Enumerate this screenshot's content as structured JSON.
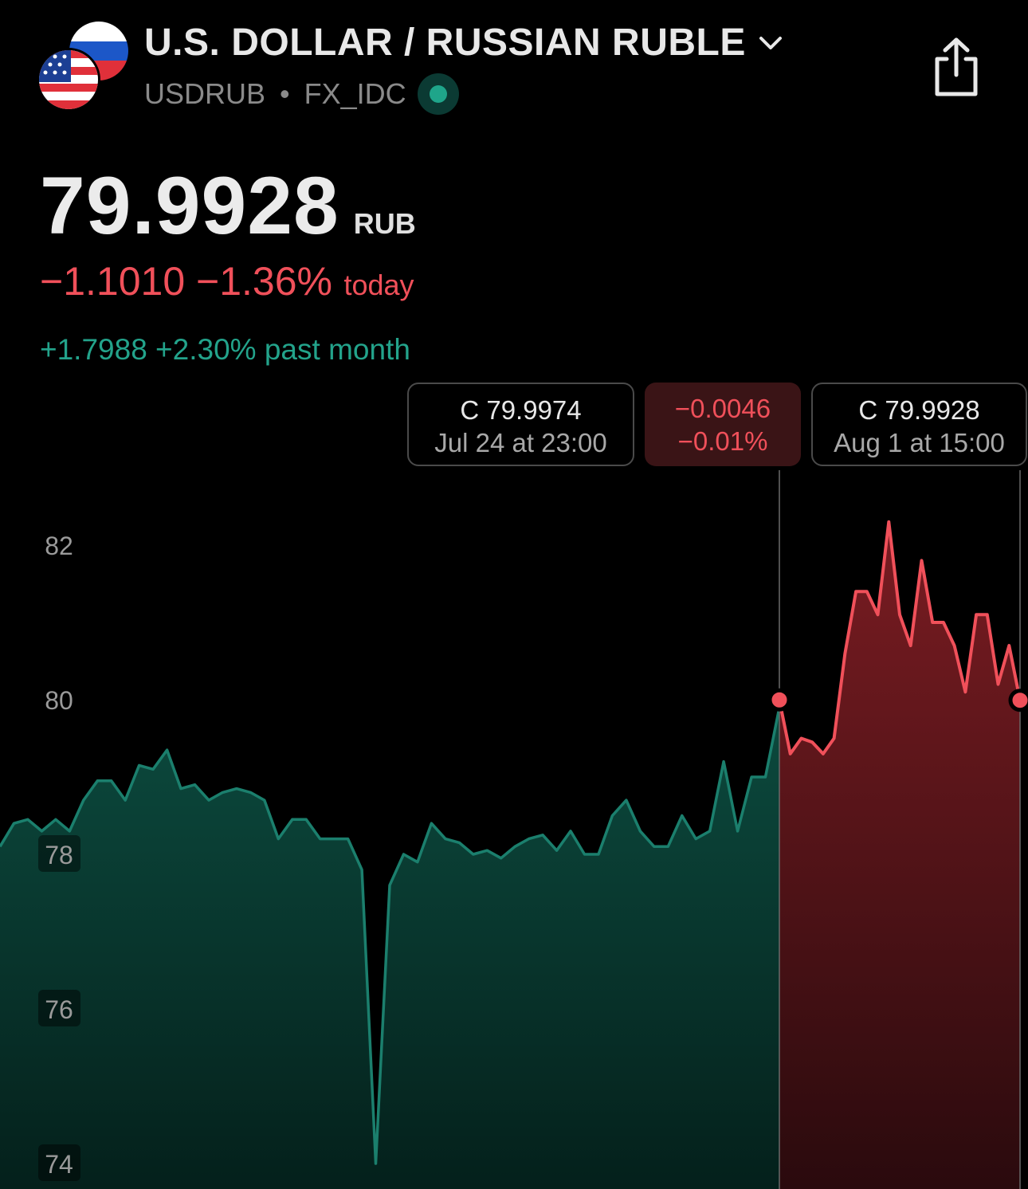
{
  "header": {
    "title": "U.S. DOLLAR / RUSSIAN RUBLE",
    "symbol": "USDRUB",
    "exchange": "FX_IDC",
    "icons": [
      "us-flag-icon",
      "ru-flag-icon",
      "chevron-down-icon",
      "live-status-icon",
      "share-icon"
    ]
  },
  "quote": {
    "price": "79.9928",
    "currency": "RUB",
    "change_today": "−1.1010 −1.36%",
    "change_today_label": "today",
    "change_month": "+1.7988 +2.30% past month"
  },
  "tooltips": {
    "left": {
      "close": "C 79.9974",
      "time": "Jul 24 at 23:00"
    },
    "diff": {
      "value": "−0.0046",
      "percent": "−0.01%"
    },
    "right": {
      "close": "C 79.9928",
      "time": "Aug 1 at 15:00"
    }
  },
  "colors": {
    "up": "#23a38b",
    "down": "#f0505a",
    "background": "#000000"
  },
  "chart_data": {
    "type": "area",
    "y_ticks": [
      "82",
      "80",
      "78",
      "76",
      "74"
    ],
    "ylim": [
      73.7,
      82.0
    ],
    "grid": false,
    "selection": {
      "start": "Jul 24 at 23:00",
      "end": "Aug 1 at 15:00",
      "start_value": 79.9974,
      "end_value": 79.9928
    },
    "series": [
      {
        "segment": "before-selection",
        "values": [
          78.1,
          78.4,
          78.45,
          78.3,
          78.45,
          78.3,
          78.7,
          78.95,
          78.95,
          78.7,
          79.15,
          79.1,
          79.35,
          78.85,
          78.9,
          78.7,
          78.8,
          78.85,
          78.8,
          78.7,
          78.2,
          78.45,
          78.45,
          78.2,
          78.2,
          78.2,
          77.8,
          74.0,
          77.6,
          78.0,
          77.9,
          78.4,
          78.2,
          78.15,
          78.0,
          78.05,
          77.95,
          78.1,
          78.2,
          78.25,
          78.05,
          78.3,
          78.0,
          78.0,
          78.5,
          78.7,
          78.3,
          78.1,
          78.1,
          78.5,
          78.2,
          78.3,
          79.2,
          78.3,
          79.0,
          79.0,
          79.9
        ]
      },
      {
        "segment": "selection",
        "values": [
          79.9974,
          79.3,
          79.5,
          79.45,
          79.3,
          79.5,
          80.6,
          81.4,
          81.4,
          81.1,
          82.3,
          81.1,
          80.7,
          81.8,
          81.0,
          81.0,
          80.7,
          80.1,
          81.1,
          81.1,
          80.2,
          80.7,
          79.9928
        ]
      }
    ]
  }
}
